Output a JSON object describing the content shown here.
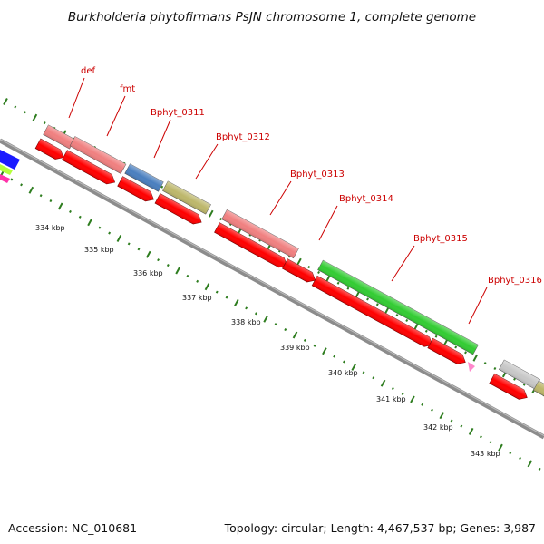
{
  "title": "Burkholderia phytofirmans PsJN chromosome 1, complete genome",
  "footer": {
    "accession": "Accession: NC_010681",
    "stats": "Topology: circular; Length: 4,467,537 bp; Genes: 3,987"
  },
  "colors": {
    "backbone": "#8c8c8c",
    "tick": "#2e7d1f",
    "label": "#cc0000",
    "cds_forward": "#ff0000",
    "gene_def": "#f08080",
    "gene_fmt": "#f08080",
    "gene_Bphyt_0311": "#4a7fbf",
    "gene_Bphyt_0312": "#bdb76b",
    "gene_Bphyt_0313": "#f08080",
    "gene_Bphyt_0314": "#f08080",
    "gene_Bphyt_0315": "#33cc33",
    "gene_Bphyt_0316": "#c8c8c8"
  },
  "scale_labels": [
    "334 kbp",
    "335 kbp",
    "336 kbp",
    "337 kbp",
    "338 kbp",
    "339 kbp",
    "340 kbp",
    "341 kbp",
    "342 kbp",
    "343 kbp"
  ],
  "gene_labels": [
    "def",
    "fmt",
    "Bphyt_0311",
    "Bphyt_0312",
    "Bphyt_0313",
    "Bphyt_0314",
    "Bphyt_0315",
    "Bphyt_0316"
  ]
}
